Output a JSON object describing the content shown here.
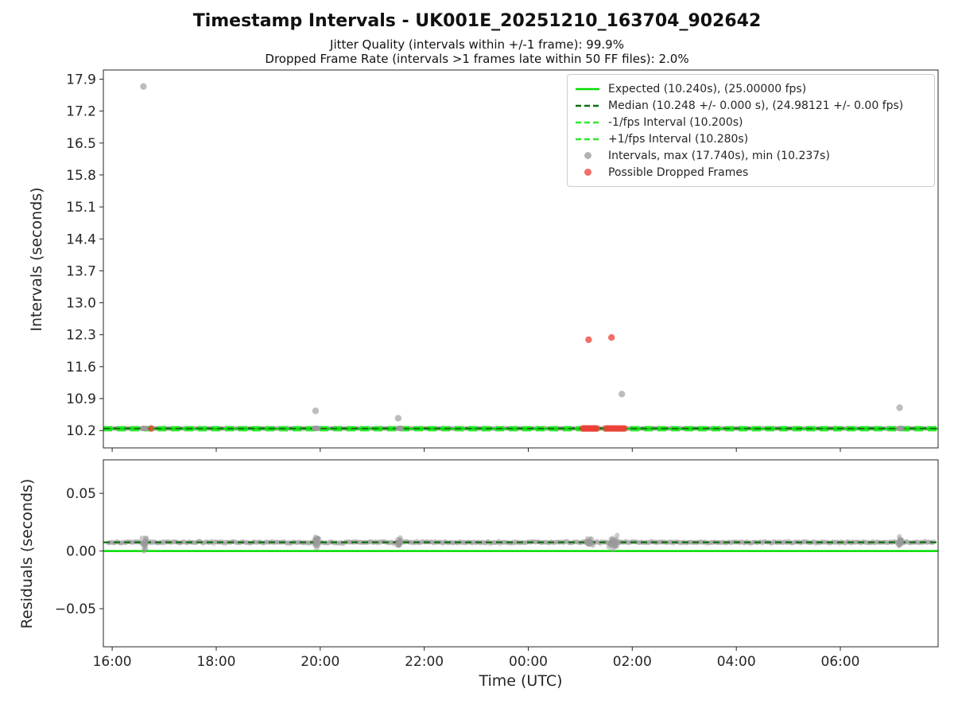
{
  "title": "Timestamp Intervals - UK001E_20251210_163704_902642",
  "subtitle1": "Jitter Quality (intervals within +/-1 frame): 99.9%",
  "subtitle2": "Dropped Frame Rate (intervals >1 frames late within 50 FF files): 2.0%",
  "xlabel": "Time (UTC)",
  "colors": {
    "expected": "#00dd00",
    "median": "#0a6e0a",
    "fps_bounds": "#2ee82e",
    "gray_point": "#999999",
    "red_point": "#ee3f38",
    "spine": "#262626",
    "tick_text": "#262626"
  },
  "legend": [
    {
      "marker": "line-solid",
      "colorKey": "expected",
      "label": "Expected (10.240s), (25.00000 fps)"
    },
    {
      "marker": "line-dashed",
      "colorKey": "median",
      "label": "Median (10.248 +/- 0.000 s), (24.98121 +/- 0.00 fps)"
    },
    {
      "marker": "line-dashed",
      "colorKey": "fps_bounds",
      "label": "-1/fps Interval (10.200s)"
    },
    {
      "marker": "line-dashed",
      "colorKey": "fps_bounds",
      "label": "+1/fps Interval (10.280s)"
    },
    {
      "marker": "dot",
      "colorKey": "gray_point",
      "label": "Intervals, max (17.740s), min (10.237s)"
    },
    {
      "marker": "dot",
      "colorKey": "red_point",
      "label": "Possible Dropped Frames"
    }
  ],
  "chart_data": [
    {
      "id": "intervals",
      "type": "scatter",
      "ylabel": "Intervals (seconds)",
      "xlim": [
        15.83,
        31.88
      ],
      "ylim": [
        9.82,
        18.1
      ],
      "xticks": [
        {
          "v": 16,
          "label": "16:00"
        },
        {
          "v": 18,
          "label": "18:00"
        },
        {
          "v": 20,
          "label": "20:00"
        },
        {
          "v": 22,
          "label": "22:00"
        },
        {
          "v": 24,
          "label": "00:00"
        },
        {
          "v": 26,
          "label": "02:00"
        },
        {
          "v": 28,
          "label": "04:00"
        },
        {
          "v": 30,
          "label": "06:00"
        }
      ],
      "yticks": [
        {
          "v": 10.2,
          "label": "10.2"
        },
        {
          "v": 10.9,
          "label": "10.9"
        },
        {
          "v": 11.6,
          "label": "11.6"
        },
        {
          "v": 12.3,
          "label": "12.3"
        },
        {
          "v": 13.0,
          "label": "13.0"
        },
        {
          "v": 13.7,
          "label": "13.7"
        },
        {
          "v": 14.4,
          "label": "14.4"
        },
        {
          "v": 15.1,
          "label": "15.1"
        },
        {
          "v": 15.8,
          "label": "15.8"
        },
        {
          "v": 16.5,
          "label": "16.5"
        },
        {
          "v": 17.2,
          "label": "17.2"
        },
        {
          "v": 17.9,
          "label": "17.9"
        }
      ],
      "hlines": [
        {
          "y": 10.24,
          "colorKey": "expected",
          "dash": "none",
          "width": 2.5
        },
        {
          "y": 10.248,
          "colorKey": "median",
          "dash": "8 5",
          "width": 2.2
        },
        {
          "y": 10.2,
          "colorKey": "fps_bounds",
          "dash": "11 6",
          "width": 2.2
        },
        {
          "y": 10.28,
          "colorKey": "fps_bounds",
          "dash": "11 6",
          "width": 2.2
        }
      ],
      "band": {
        "x0": 15.92,
        "x1": 31.8,
        "y": 10.246,
        "y_jitter": 0.005,
        "count": 650
      },
      "clusters": [
        {
          "x": 16.62,
          "xs": 0.07,
          "y": 10.246,
          "ys": 0.012,
          "count": 18
        },
        {
          "x": 19.93,
          "xs": 0.07,
          "y": 10.246,
          "ys": 0.012,
          "count": 18
        },
        {
          "x": 21.52,
          "xs": 0.07,
          "y": 10.246,
          "ys": 0.012,
          "count": 15
        },
        {
          "x": 25.17,
          "xs": 0.1,
          "y": 10.246,
          "ys": 0.012,
          "count": 18
        },
        {
          "x": 25.65,
          "xs": 0.12,
          "y": 10.246,
          "ys": 0.012,
          "count": 20
        },
        {
          "x": 31.15,
          "xs": 0.07,
          "y": 10.246,
          "ys": 0.012,
          "count": 15
        }
      ],
      "gray_outliers": [
        [
          16.6,
          17.74
        ],
        [
          19.91,
          10.63
        ],
        [
          21.5,
          10.47
        ],
        [
          25.8,
          11.0
        ],
        [
          31.14,
          10.7
        ]
      ],
      "red_points": [
        [
          16.75,
          10.246
        ],
        [
          25.16,
          12.19
        ],
        [
          25.6,
          12.24
        ],
        [
          25.05,
          10.246
        ],
        [
          25.08,
          10.246
        ],
        [
          25.11,
          10.246
        ],
        [
          25.14,
          10.246
        ],
        [
          25.17,
          10.246
        ],
        [
          25.2,
          10.246
        ],
        [
          25.23,
          10.246
        ],
        [
          25.26,
          10.246
        ],
        [
          25.29,
          10.246
        ],
        [
          25.32,
          10.246
        ],
        [
          25.49,
          10.246
        ],
        [
          25.53,
          10.246
        ],
        [
          25.57,
          10.246
        ],
        [
          25.61,
          10.246
        ],
        [
          25.65,
          10.246
        ],
        [
          25.69,
          10.246
        ],
        [
          25.73,
          10.246
        ],
        [
          25.77,
          10.246
        ],
        [
          25.81,
          10.246
        ],
        [
          25.85,
          10.246
        ]
      ],
      "show_xlabels": false
    },
    {
      "id": "residuals",
      "type": "scatter",
      "ylabel": "Residuals (seconds)",
      "xlim": [
        15.83,
        31.88
      ],
      "ylim": [
        -0.083,
        0.079
      ],
      "xticks": [
        {
          "v": 16,
          "label": "16:00"
        },
        {
          "v": 18,
          "label": "18:00"
        },
        {
          "v": 20,
          "label": "20:00"
        },
        {
          "v": 22,
          "label": "22:00"
        },
        {
          "v": 24,
          "label": "00:00"
        },
        {
          "v": 26,
          "label": "02:00"
        },
        {
          "v": 28,
          "label": "04:00"
        },
        {
          "v": 30,
          "label": "06:00"
        }
      ],
      "yticks": [
        {
          "v": -0.05,
          "label": "−0.05"
        },
        {
          "v": 0.0,
          "label": "0.00"
        },
        {
          "v": 0.05,
          "label": "0.05"
        }
      ],
      "hlines": [
        {
          "y": 0.0,
          "colorKey": "expected",
          "dash": "none",
          "width": 2.5
        },
        {
          "y": 0.0075,
          "colorKey": "median",
          "dash": "8 5",
          "width": 2.2
        }
      ],
      "band": {
        "x0": 15.92,
        "x1": 31.8,
        "y": 0.0075,
        "y_jitter": 0.0013,
        "count": 650
      },
      "clusters": [
        {
          "x": 16.62,
          "xs": 0.06,
          "y": 0.006,
          "ys": 0.007,
          "count": 22
        },
        {
          "x": 19.93,
          "xs": 0.06,
          "y": 0.0075,
          "ys": 0.007,
          "count": 22
        },
        {
          "x": 21.52,
          "xs": 0.06,
          "y": 0.007,
          "ys": 0.006,
          "count": 18
        },
        {
          "x": 25.17,
          "xs": 0.09,
          "y": 0.007,
          "ys": 0.006,
          "count": 22
        },
        {
          "x": 25.65,
          "xs": 0.12,
          "y": 0.007,
          "ys": 0.008,
          "count": 26
        },
        {
          "x": 31.15,
          "xs": 0.06,
          "y": 0.009,
          "ys": 0.007,
          "count": 18
        }
      ],
      "gray_outliers": [],
      "red_points": [],
      "show_xlabels": true
    }
  ]
}
